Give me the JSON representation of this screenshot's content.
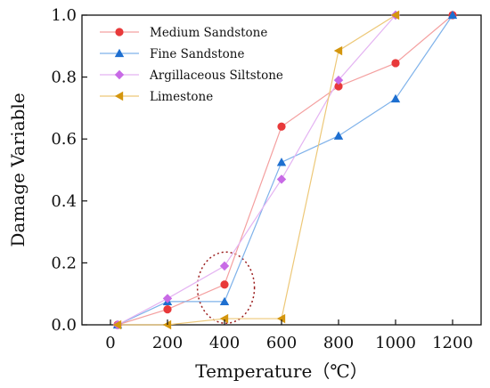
{
  "chart_data": {
    "type": "line",
    "xlabel": "Temperature（℃）",
    "ylabel": "Damage Variable",
    "xlim": [
      -100,
      1300
    ],
    "ylim": [
      0,
      1.0
    ],
    "xticks": [
      "0",
      "200",
      "400",
      "600",
      "800",
      "1000",
      "1200"
    ],
    "yticks": [
      "0.0",
      "0.2",
      "0.4",
      "0.6",
      "0.8",
      "1.0"
    ],
    "legend_position": "top-left",
    "grid": false,
    "series": [
      {
        "name": "Medium Sandstone",
        "marker": "circle",
        "color": "#e8393a",
        "line_color": "#f4a0a0",
        "x": [
          25,
          200,
          400,
          600,
          800,
          1000,
          1200
        ],
        "y": [
          0.0,
          0.05,
          0.13,
          0.64,
          0.77,
          0.845,
          1.0
        ]
      },
      {
        "name": "Fine Sandstone",
        "marker": "triangle-up",
        "color": "#1e6fd0",
        "line_color": "#7fb2ea",
        "x": [
          25,
          200,
          400,
          600,
          800,
          1000,
          1200
        ],
        "y": [
          0.0,
          0.075,
          0.075,
          0.525,
          0.61,
          0.73,
          1.0
        ]
      },
      {
        "name": "Argillaceous Siltstone",
        "marker": "diamond",
        "color": "#c86ae6",
        "line_color": "#e4b3f2",
        "x": [
          25,
          200,
          400,
          600,
          800,
          1000
        ],
        "y": [
          0.0,
          0.085,
          0.19,
          0.47,
          0.79,
          1.0
        ]
      },
      {
        "name": "Limestone",
        "marker": "triangle-left",
        "color": "#d4960e",
        "line_color": "#edc878",
        "x": [
          25,
          200,
          400,
          600,
          800,
          1000
        ],
        "y": [
          0.0,
          0.0,
          0.02,
          0.02,
          0.885,
          1.0
        ]
      }
    ],
    "annotation": {
      "type": "dotted-ellipse",
      "color": "#9b1d1d",
      "center": [
        405,
        0.12
      ],
      "radius_x": 100,
      "radius_y": 0.115
    }
  }
}
